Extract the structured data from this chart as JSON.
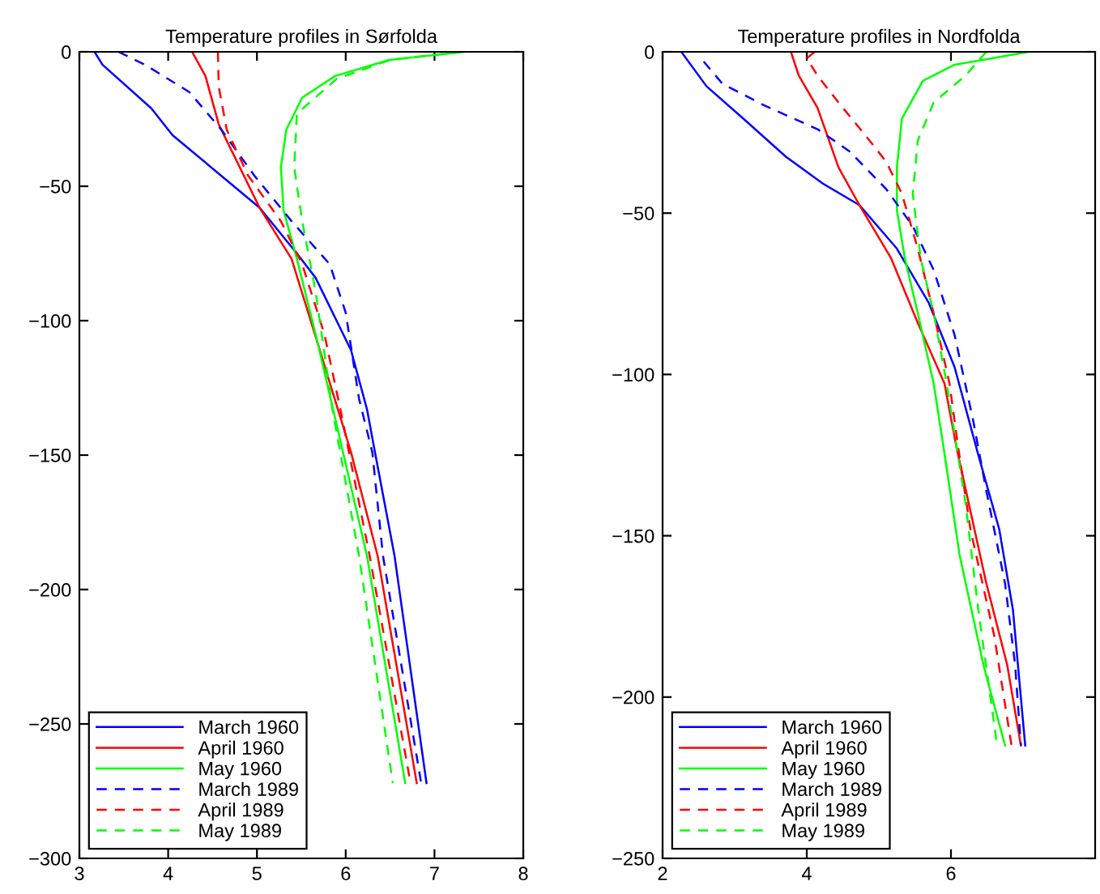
{
  "chart_data": [
    {
      "type": "line",
      "title": "Temperature profiles in Sørfolda",
      "xlim": [
        3,
        8
      ],
      "ylim": [
        -300,
        0
      ],
      "xticks": [
        3,
        4,
        5,
        6,
        7,
        8
      ],
      "yticks": [
        -300,
        -250,
        -200,
        -150,
        -100,
        -50,
        0
      ],
      "legend": "bottom left",
      "grid": false,
      "series": [
        {
          "name": "March 1960",
          "color": "#0000ff",
          "line_style": "solid",
          "x": [
            3.17,
            3.26,
            3.81,
            4.05,
            5.03,
            5.45,
            5.66,
            6.06,
            6.24,
            6.33,
            6.55,
            6.91
          ],
          "values": [
            0,
            -4.8,
            -21,
            -31,
            -58,
            -75,
            -84,
            -111,
            -133,
            -149,
            -187.5,
            -272
          ]
        },
        {
          "name": "April 1960",
          "color": "#ff0000",
          "line_style": "solid",
          "x": [
            4.27,
            4.42,
            4.57,
            5.03,
            5.39,
            5.69,
            6.06,
            6.36,
            6.8
          ],
          "values": [
            0,
            -9,
            -27,
            -58,
            -77,
            -109,
            -149,
            -187.5,
            -272
          ]
        },
        {
          "name": "May 1960",
          "color": "#00ff00",
          "line_style": "solid",
          "x": [
            7.34,
            6.49,
            5.88,
            5.51,
            5.33,
            5.27,
            5.3,
            5.45,
            5.69,
            5.97,
            6.24,
            6.67
          ],
          "values": [
            0,
            -3,
            -9,
            -17,
            -29,
            -43,
            -59,
            -77,
            -109,
            -149,
            -187.5,
            -272
          ]
        },
        {
          "name": "March 1989",
          "color": "#0000ff",
          "line_style": "dashed",
          "x": [
            3.44,
            3.75,
            4.24,
            4.6,
            4.97,
            5.39,
            5.82,
            6.0,
            6.15,
            6.3,
            6.42,
            6.85
          ],
          "values": [
            0,
            -5,
            -15,
            -29,
            -46,
            -63,
            -79,
            -97,
            -129,
            -149,
            -187.5,
            -272
          ]
        },
        {
          "name": "April 1989",
          "color": "#ff0000",
          "line_style": "dashed",
          "x": [
            4.56,
            4.57,
            4.66,
            4.9,
            5.27,
            5.51,
            5.76,
            5.94,
            6.27,
            6.73
          ],
          "values": [
            0,
            -13,
            -29,
            -46,
            -63,
            -79,
            -105,
            -133,
            -187.5,
            -272
          ]
        },
        {
          "name": "May 1989",
          "color": "#00ff00",
          "line_style": "dashed",
          "x": [
            7.3,
            6.5,
            5.9,
            5.45,
            5.42,
            5.51,
            5.66,
            5.85,
            6.15,
            6.53
          ],
          "values": [
            0,
            -3,
            -10,
            -23,
            -43,
            -63,
            -89,
            -133,
            -187.5,
            -272
          ]
        }
      ]
    },
    {
      "type": "line",
      "title": "Temperature profiles in Nordfolda",
      "xlim": [
        2,
        8
      ],
      "ylim": [
        -250,
        0
      ],
      "xticks": [
        2,
        4,
        6
      ],
      "yticks": [
        -250,
        -200,
        -150,
        -100,
        -50,
        0
      ],
      "legend": "bottom left",
      "grid": false,
      "series": [
        {
          "name": "March 1960",
          "color": "#0000ff",
          "line_style": "solid",
          "x": [
            2.26,
            2.61,
            3.12,
            3.71,
            4.22,
            4.73,
            5.25,
            5.69,
            6.05,
            6.38,
            6.67,
            6.86,
            7.03
          ],
          "values": [
            0,
            -10.7,
            -20.7,
            -32.5,
            -40.8,
            -47.5,
            -61,
            -77.7,
            -97.7,
            -125,
            -148,
            -173,
            -215
          ]
        },
        {
          "name": "April 1960",
          "color": "#ff0000",
          "line_style": "solid",
          "x": [
            3.78,
            3.89,
            4.15,
            4.44,
            4.73,
            5.17,
            5.54,
            5.91,
            6.08,
            6.49,
            6.78,
            6.97
          ],
          "values": [
            0,
            -7.4,
            -17.4,
            -35.8,
            -47.5,
            -64,
            -84,
            -102.8,
            -123,
            -164.7,
            -190,
            -215
          ]
        },
        {
          "name": "May 1960",
          "color": "#00ff00",
          "line_style": "solid",
          "x": [
            7.08,
            6.05,
            5.61,
            5.32,
            5.25,
            5.25,
            5.36,
            5.54,
            5.76,
            5.91,
            6.12,
            6.45,
            6.75
          ],
          "values": [
            0,
            -4,
            -9,
            -20.7,
            -35.8,
            -49,
            -64,
            -81,
            -102.8,
            -124.5,
            -156,
            -190,
            -215
          ]
        },
        {
          "name": "March 1989",
          "color": "#0000ff",
          "line_style": "dashed",
          "x": [
            2.57,
            2.83,
            3.41,
            4.15,
            4.59,
            5.1,
            5.47,
            5.76,
            6.05,
            6.31,
            6.49,
            6.75,
            6.89,
            6.97
          ],
          "values": [
            -3,
            -9.9,
            -16.6,
            -24,
            -30.8,
            -42.5,
            -54,
            -67.6,
            -87.7,
            -114.5,
            -136,
            -164.7,
            -190,
            -215
          ]
        },
        {
          "name": "April 1989",
          "color": "#ff0000",
          "line_style": "dashed",
          "x": [
            4.11,
            4.0,
            4.15,
            4.44,
            4.81,
            5.1,
            5.32,
            5.54,
            5.76,
            5.98,
            6.09,
            6.27,
            6.6,
            6.84
          ],
          "values": [
            0,
            -2,
            -7.4,
            -15.7,
            -25.8,
            -34,
            -44,
            -61,
            -81,
            -102.8,
            -121,
            -148,
            -181,
            -215
          ]
        },
        {
          "name": "May 1989",
          "color": "#00ff00",
          "line_style": "dashed",
          "x": [
            6.49,
            6.2,
            5.76,
            5.54,
            5.47,
            5.58,
            5.76,
            5.94,
            6.2,
            6.38,
            6.64
          ],
          "values": [
            0,
            -7.4,
            -15.7,
            -27.5,
            -44,
            -64,
            -81,
            -102.8,
            -139.6,
            -173,
            -215
          ]
        }
      ]
    }
  ]
}
